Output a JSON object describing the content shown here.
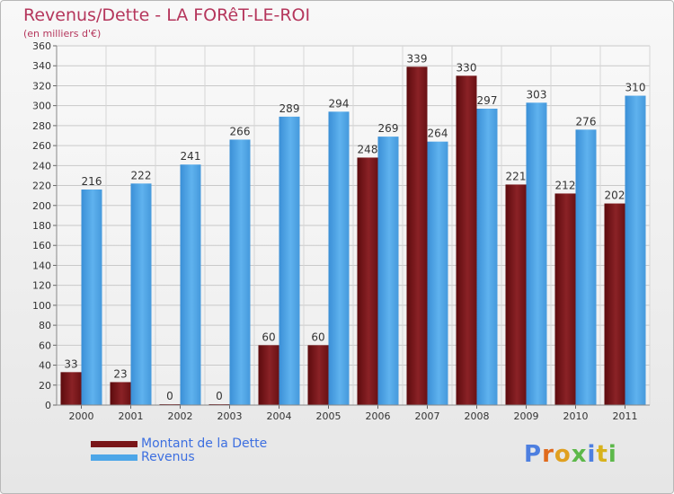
{
  "title": "Revenus/Dette - LA FORêT-LE-ROI",
  "subtitle": "(en milliers d'€)",
  "chart_data": {
    "type": "bar",
    "categories": [
      "2000",
      "2001",
      "2002",
      "2003",
      "2004",
      "2005",
      "2006",
      "2007",
      "2008",
      "2009",
      "2010",
      "2011"
    ],
    "series": [
      {
        "name": "Montant de la Dette",
        "color": "#7a1518",
        "values": [
          33,
          23,
          0,
          0,
          60,
          60,
          248,
          339,
          330,
          221,
          212,
          202
        ]
      },
      {
        "name": "Revenus",
        "color": "#4da6e8",
        "values": [
          216,
          222,
          241,
          266,
          289,
          294,
          269,
          264,
          297,
          303,
          276,
          310
        ]
      }
    ],
    "ylim": [
      0,
      360
    ],
    "yticks": [
      0,
      20,
      40,
      60,
      80,
      100,
      120,
      140,
      160,
      180,
      200,
      220,
      240,
      260,
      280,
      300,
      320,
      340,
      360
    ],
    "grid": true,
    "legend": "bottom-left"
  },
  "legend": {
    "items": [
      {
        "label": "Montant de la Dette",
        "color": "#7a1518"
      },
      {
        "label": "Revenus",
        "color": "#4da6e8"
      }
    ]
  },
  "brand": {
    "letters": [
      {
        "ch": "P",
        "color": "#4d7fe0"
      },
      {
        "ch": "r",
        "color": "#e06a1c"
      },
      {
        "ch": "o",
        "color": "#e0a020"
      },
      {
        "ch": "x",
        "color": "#5cb84a"
      },
      {
        "ch": "i",
        "color": "#4d7fe0"
      },
      {
        "ch": "t",
        "color": "#d8b21c"
      },
      {
        "ch": "i",
        "color": "#5cb84a"
      }
    ]
  }
}
